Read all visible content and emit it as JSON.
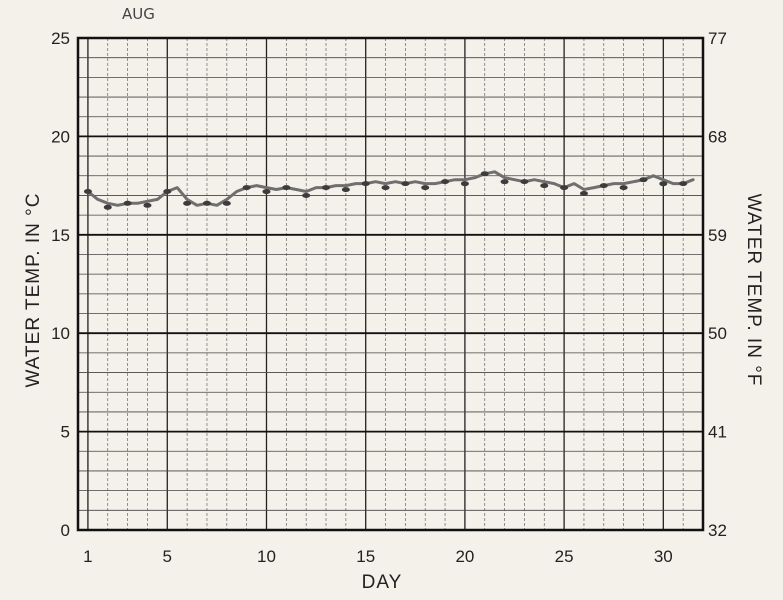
{
  "chart_data": {
    "type": "line",
    "annotation": "AUG",
    "xlabel": "DAY",
    "ylabel": "WATER TEMP. IN °C",
    "ylabel_right": "WATER TEMP. IN °F",
    "xlim": [
      0.5,
      32
    ],
    "ylim": [
      0,
      25
    ],
    "x_ticks": [
      1,
      5,
      10,
      15,
      20,
      25,
      30
    ],
    "y_ticks": [
      0,
      5,
      10,
      15,
      20,
      25
    ],
    "y_ticks_right": [
      32,
      41,
      50,
      59,
      68,
      77
    ],
    "y_ticks_right_labels": [
      "32",
      "41",
      "50",
      "59",
      "68",
      "77"
    ],
    "grid": true,
    "series": [
      {
        "x": [
          1,
          1.5,
          2,
          2.5,
          3,
          3.5,
          4,
          4.5,
          5,
          5.5,
          6,
          6.5,
          7,
          7.5,
          8,
          8.5,
          9,
          9.5,
          10,
          10.5,
          11,
          11.5,
          12,
          12.5,
          13,
          13.5,
          14,
          14.5,
          15,
          15.5,
          16,
          16.5,
          17,
          17.5,
          18,
          18.5,
          19,
          19.5,
          20,
          20.5,
          21,
          21.5,
          22,
          22.5,
          23,
          23.5,
          24,
          24.5,
          25,
          25.5,
          26,
          26.5,
          27,
          27.5,
          28,
          28.5,
          29,
          29.5,
          30,
          30.5,
          31,
          31.5
        ],
        "values": [
          17.2,
          16.8,
          16.6,
          16.5,
          16.6,
          16.6,
          16.7,
          16.8,
          17.2,
          17.4,
          16.8,
          16.5,
          16.6,
          16.5,
          16.8,
          17.2,
          17.4,
          17.5,
          17.4,
          17.3,
          17.4,
          17.3,
          17.2,
          17.4,
          17.4,
          17.5,
          17.5,
          17.6,
          17.6,
          17.7,
          17.6,
          17.7,
          17.6,
          17.7,
          17.6,
          17.6,
          17.7,
          17.8,
          17.8,
          17.9,
          18.1,
          18.2,
          17.9,
          17.8,
          17.7,
          17.8,
          17.7,
          17.6,
          17.4,
          17.6,
          17.3,
          17.4,
          17.5,
          17.6,
          17.6,
          17.7,
          17.8,
          18.0,
          17.8,
          17.6,
          17.6,
          17.8
        ]
      }
    ]
  }
}
